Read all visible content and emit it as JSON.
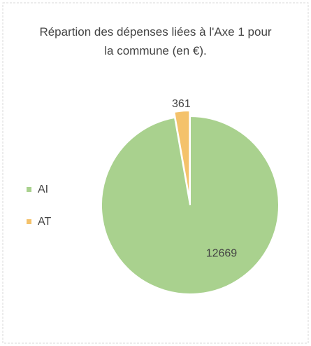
{
  "chart_data": {
    "type": "pie",
    "title": "Répartion des dépenses liées à l'Axe 1 pour la commune (en €).",
    "categories": [
      "AI",
      "AT"
    ],
    "values": [
      12669,
      361
    ],
    "colors": [
      "#a9d18e",
      "#f4c26b"
    ],
    "legend": "left"
  }
}
